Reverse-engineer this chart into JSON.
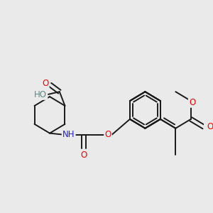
{
  "bg_color": "#eaeaea",
  "bond_color": "#1a1a1a",
  "bond_width": 1.4,
  "atom_colors": {
    "O": "#ff0000",
    "N": "#2222cc",
    "HO": "#5c8888",
    "C": "#1a1a1a"
  },
  "font_size": 8.5,
  "fig_width": 3.0,
  "fig_height": 3.0,
  "dpi": 100
}
